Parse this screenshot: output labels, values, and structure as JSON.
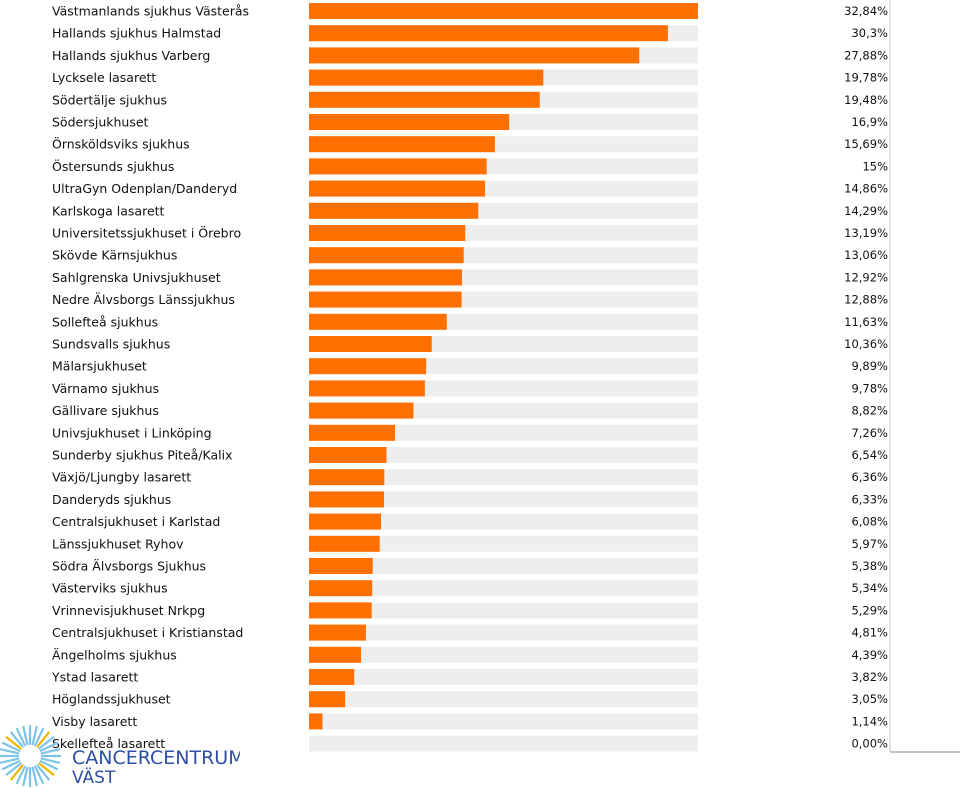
{
  "chart_data": {
    "type": "bar",
    "orientation": "horizontal",
    "categories": [
      "Västmanlands sjukhus Västerås",
      "Hallands sjukhus Halmstad",
      "Hallands sjukhus Varberg",
      "Lycksele lasarett",
      "Södertälje sjukhus",
      "Södersjukhuset",
      "Örnsköldsviks sjukhus",
      "Östersunds sjukhus",
      "UltraGyn Odenplan/Danderyd",
      "Karlskoga lasarett",
      "Universitetssjukhuset i Örebro",
      "Skövde Kärnsjukhus",
      "Sahlgrenska Univsjukhuset",
      "Nedre Älvsborgs Länssjukhus",
      "Sollefteå sjukhus",
      "Sundsvalls sjukhus",
      "Mälarsjukhuset",
      "Värnamo sjukhus",
      "Gällivare sjukhus",
      "Univsjukhuset i Linköping",
      "Sunderby sjukhus Piteå/Kalix",
      "Växjö/Ljungby lasarett",
      "Danderyds sjukhus",
      "Centralsjukhuset i Karlstad",
      "Länssjukhuset Ryhov",
      "Södra Älvsborgs Sjukhus",
      "Västerviks sjukhus",
      "Vrinnevisjukhuset Nrkpg",
      "Centralsjukhuset i Kristianstad",
      "Ängelholms sjukhus",
      "Ystad lasarett",
      "Höglandssjukhuset",
      "Visby lasarett",
      "Skellefteå lasarett"
    ],
    "values": [
      32.84,
      30.3,
      27.88,
      19.78,
      19.48,
      16.9,
      15.69,
      15,
      14.86,
      14.29,
      13.19,
      13.06,
      12.92,
      12.88,
      11.63,
      10.36,
      9.89,
      9.78,
      8.82,
      7.26,
      6.54,
      6.36,
      6.33,
      6.08,
      5.97,
      5.38,
      5.34,
      5.29,
      4.81,
      4.39,
      3.82,
      3.05,
      1.14,
      0.0
    ],
    "value_labels": [
      "32,84%",
      "30,3%",
      "27,88%",
      "19,78%",
      "19,48%",
      "16,9%",
      "15,69%",
      "15%",
      "14,86%",
      "14,29%",
      "13,19%",
      "13,06%",
      "12,92%",
      "12,88%",
      "11,63%",
      "10,36%",
      "9,89%",
      "9,78%",
      "8,82%",
      "7,26%",
      "6,54%",
      "6,36%",
      "6,33%",
      "6,08%",
      "5,97%",
      "5,38%",
      "5,34%",
      "5,29%",
      "4,81%",
      "4,39%",
      "3,82%",
      "3,05%",
      "1,14%",
      "0,00%"
    ],
    "unit": "%",
    "xlim": [
      0,
      32.84
    ],
    "grid": false,
    "bar_color": "#ff7000",
    "track_color": "#eeeeee"
  },
  "logo": {
    "line1": "CANCERCENTRUM",
    "line2": "VÄST",
    "color": "#2d4fa3",
    "ray_color_light": "#7fc4e8",
    "ray_color_accent": "#f0b400"
  }
}
